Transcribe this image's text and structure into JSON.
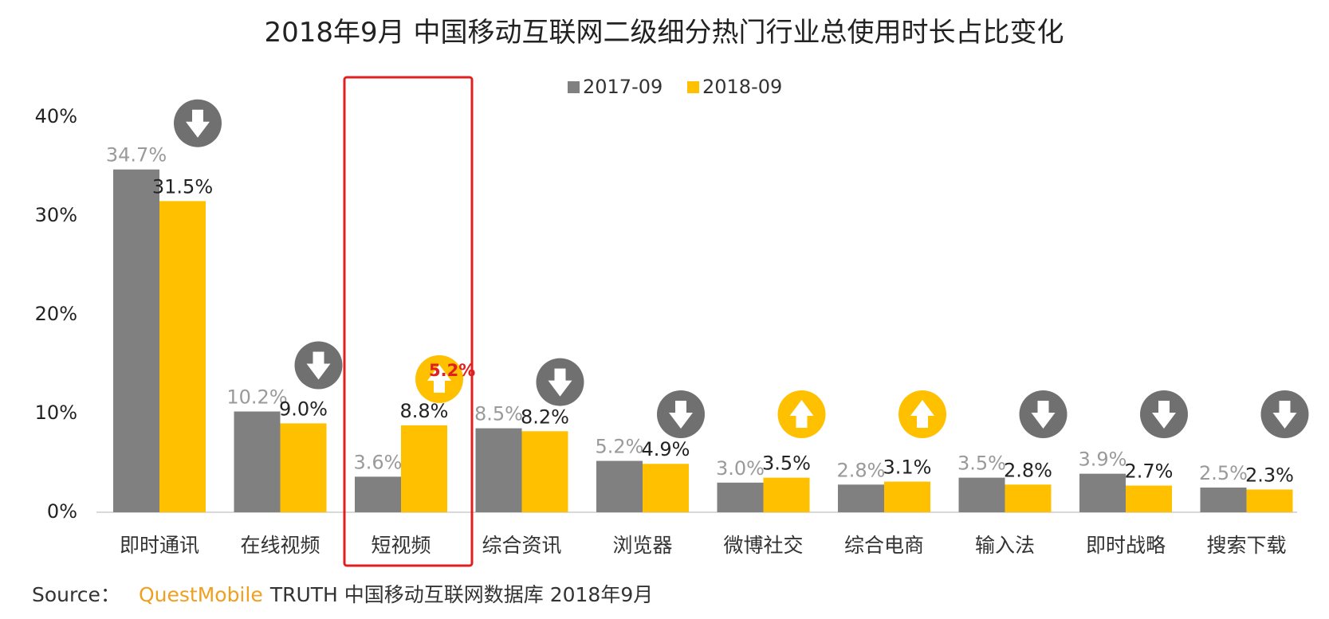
{
  "chart_data": {
    "type": "bar",
    "title": "2018年9月 中国移动互联网二级细分热门行业总使用时长占比变化",
    "categories": [
      "即时通讯",
      "在线视频",
      "短视频",
      "综合资讯",
      "浏览器",
      "微博社交",
      "综合电商",
      "输入法",
      "即时战略",
      "搜索下载"
    ],
    "series": [
      {
        "name": "2017-09",
        "color": "#808080",
        "values": [
          34.7,
          10.2,
          3.6,
          8.5,
          5.2,
          3.0,
          2.8,
          3.5,
          3.9,
          2.5
        ],
        "labels": [
          "34.7%",
          "10.2%",
          "3.6%",
          "8.5%",
          "5.2%",
          "3.0%",
          "2.8%",
          "3.5%",
          "3.9%",
          "2.5%"
        ]
      },
      {
        "name": "2018-09",
        "color": "#ffc000",
        "values": [
          31.5,
          9.0,
          8.8,
          8.2,
          4.9,
          3.5,
          3.1,
          2.8,
          2.7,
          2.3
        ],
        "labels": [
          "31.5%",
          "9.0%",
          "8.8%",
          "8.2%",
          "4.9%",
          "3.5%",
          "3.1%",
          "2.8%",
          "2.7%",
          "2.3%"
        ]
      }
    ],
    "trend": [
      "down",
      "down",
      "up",
      "down",
      "down",
      "up",
      "up",
      "down",
      "down",
      "down"
    ],
    "trend_colors": {
      "up": "#ffc000",
      "down": "#707070"
    },
    "highlight": {
      "category": "短视频",
      "change_label": "5.2%",
      "box_color": "#e02020"
    },
    "ylim": [
      0,
      40
    ],
    "yticks": [
      "0%",
      "10%",
      "20%",
      "30%",
      "40%"
    ],
    "legend_position": "top-center",
    "grid": false
  },
  "source": {
    "prefix": "Source：",
    "brand": "QuestMobile",
    "text": "TRUTH 中国移动互联网数据库 2018年9月"
  }
}
